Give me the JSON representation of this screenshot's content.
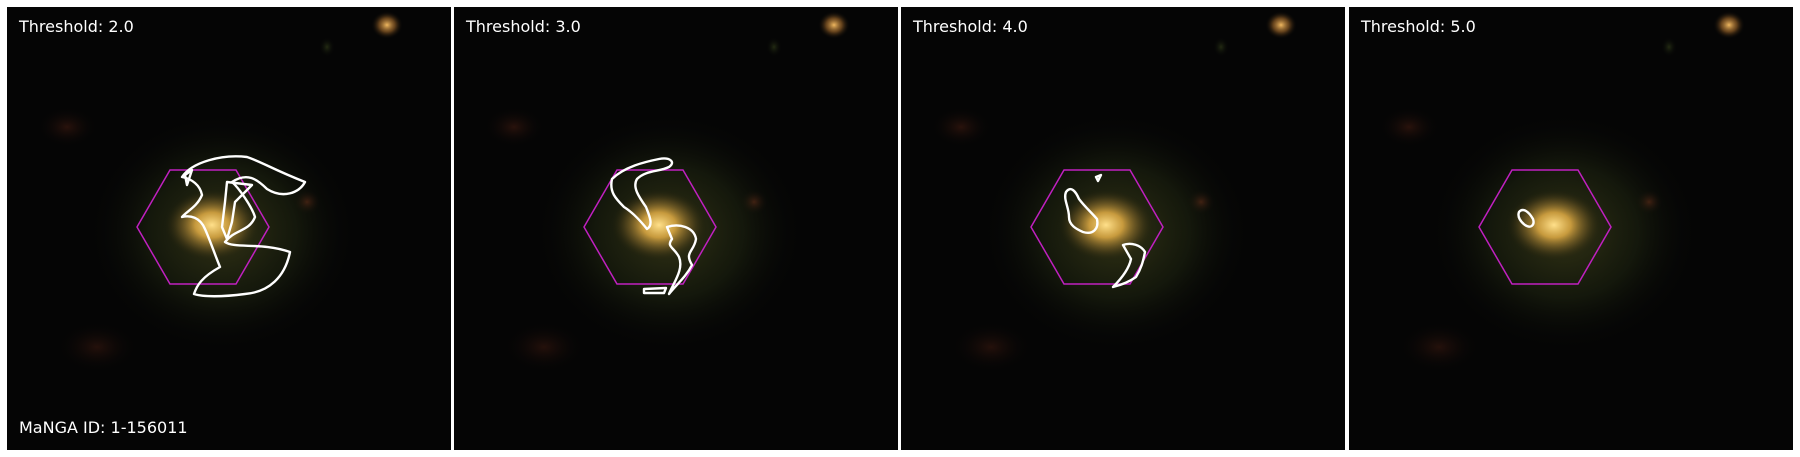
{
  "panels": [
    {
      "label": "Threshold: 2.0"
    },
    {
      "label": "Threshold: 3.0"
    },
    {
      "label": "Threshold: 4.0"
    },
    {
      "label": "Threshold: 5.0"
    }
  ],
  "galaxy_id": "MaNGA ID: 1-156011",
  "colors": {
    "background": "#050505",
    "galaxy_core": "#f3c15a",
    "hexagon": "#c020c0",
    "contour": "#ffffff",
    "frame_gap": "#ffffff"
  }
}
